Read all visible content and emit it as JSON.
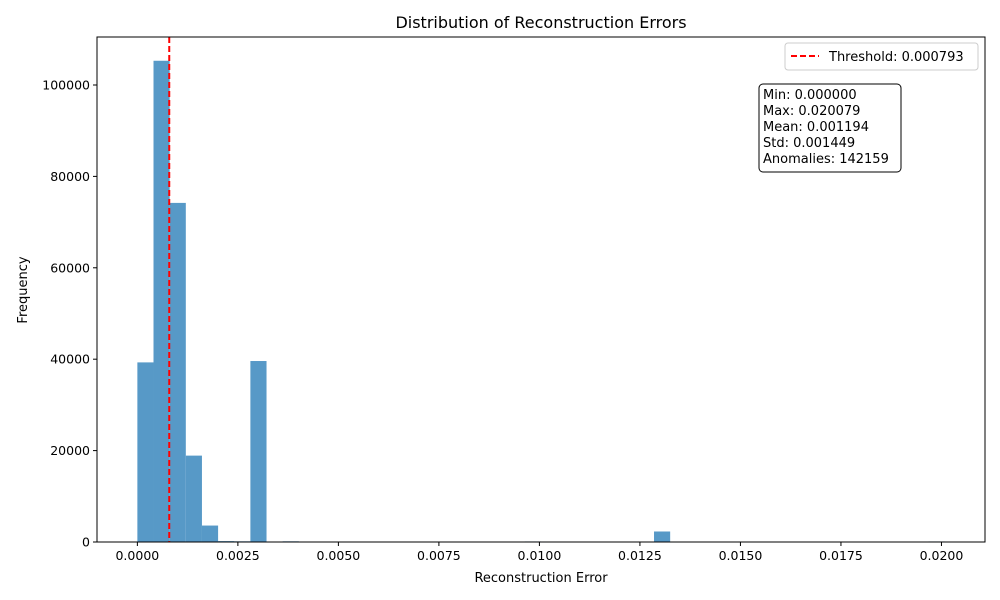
{
  "chart_data": {
    "type": "bar",
    "title": "Distribution of Reconstruction Errors",
    "xlabel": "Reconstruction Error",
    "ylabel": "Frequency",
    "xlim": [
      -0.001004,
      0.021083
    ],
    "ylim": [
      0,
      110500
    ],
    "x_ticks": [
      0.0,
      0.0025,
      0.005,
      0.0075,
      0.01,
      0.0125,
      0.015,
      0.0175,
      0.02
    ],
    "x_tick_labels": [
      "0.0000",
      "0.0025",
      "0.0050",
      "0.0075",
      "0.0100",
      "0.0125",
      "0.0150",
      "0.0175",
      "0.0200"
    ],
    "y_ticks": [
      0,
      20000,
      40000,
      60000,
      80000,
      100000
    ],
    "y_tick_labels": [
      "0",
      "20000",
      "40000",
      "60000",
      "80000",
      "100000"
    ],
    "grid": false,
    "bar_color": "#5799c7",
    "bin_edges_start": 0.0,
    "bin_width": 0.00040158,
    "series": [
      {
        "values": [
          39300,
          105300,
          74200,
          18900,
          3600,
          200,
          150,
          39600,
          0,
          150,
          0,
          0,
          0,
          0,
          0,
          0,
          0,
          0,
          0,
          0,
          0,
          0,
          0,
          0,
          120,
          0,
          0,
          0,
          0,
          0,
          0,
          0,
          2300,
          0,
          0,
          0,
          0,
          0,
          0,
          0,
          0,
          0,
          0,
          0,
          0,
          0,
          0,
          0,
          0,
          120
        ]
      }
    ],
    "threshold": {
      "value": 0.000793,
      "color": "#ff0000",
      "label": "Threshold: 0.000793"
    },
    "legend": {
      "placement": "top-right",
      "entries": [
        "Threshold: 0.000793"
      ]
    },
    "stats_box": {
      "placement": "upper-right",
      "lines": [
        "Min: 0.000000",
        "Max: 0.020079",
        "Mean: 0.001194",
        "Std: 0.001449",
        "Anomalies: 142159"
      ]
    }
  }
}
